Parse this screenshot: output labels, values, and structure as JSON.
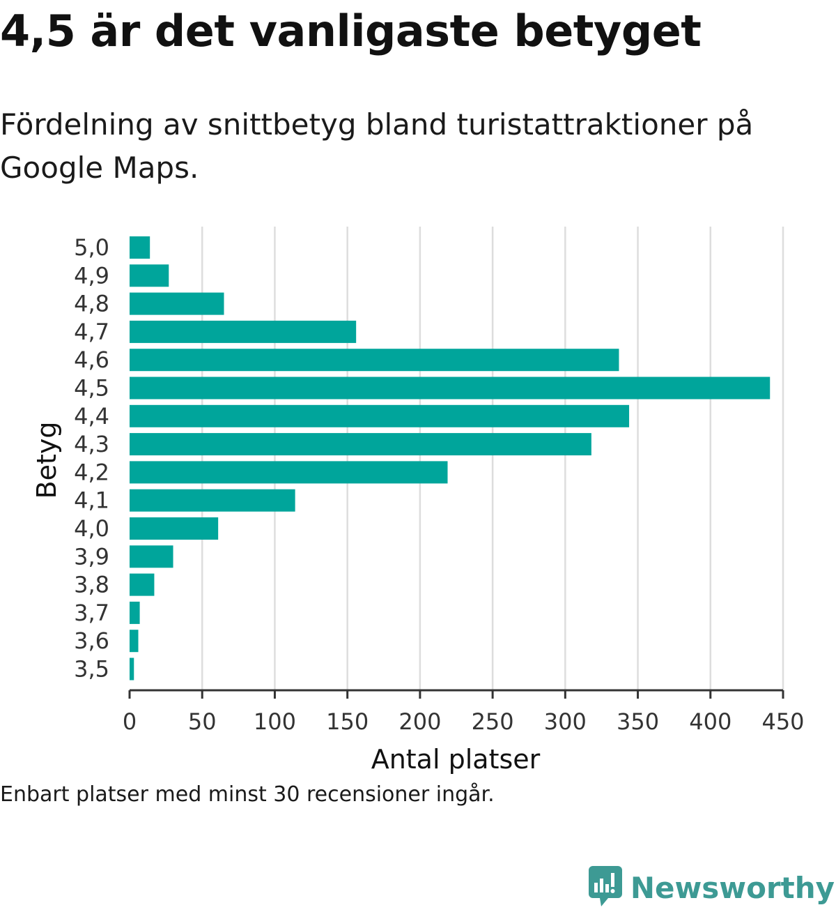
{
  "title": "4,5 är det vanligaste betyget",
  "subtitle": "Fördelning av snittbetyg bland turistattraktioner på Google Maps.",
  "note": "Enbart platser med minst 30 recensioner ingår.",
  "brand": {
    "name": "Newsworthy",
    "color": "#3d9a94",
    "icon": "newsworthy-logo-icon"
  },
  "colors": {
    "bar": "#00a59b",
    "grid": "#dddddd",
    "axis": "#333333"
  },
  "chart_data": {
    "type": "bar",
    "orientation": "horizontal",
    "categories": [
      "5,0",
      "4,9",
      "4,8",
      "4,7",
      "4,6",
      "4,5",
      "4,4",
      "4,3",
      "4,2",
      "4,1",
      "4,0",
      "3,9",
      "3,8",
      "3,7",
      "3,6",
      "3,5"
    ],
    "values": [
      14,
      27,
      65,
      156,
      337,
      441,
      344,
      318,
      219,
      114,
      61,
      30,
      17,
      7,
      6,
      3
    ],
    "xlabel": "Antal platser",
    "ylabel": "Betyg",
    "xlim": [
      0,
      450
    ],
    "xticks": [
      0,
      50,
      100,
      150,
      200,
      250,
      300,
      350,
      400,
      450
    ],
    "grid": "vertical"
  }
}
